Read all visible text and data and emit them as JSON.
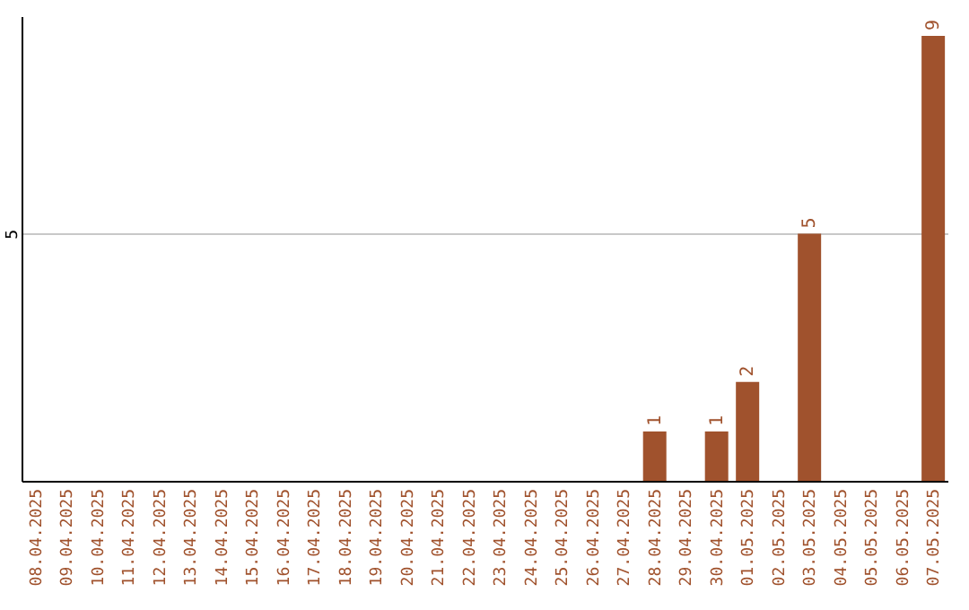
{
  "chart_data": {
    "type": "bar",
    "categories": [
      "08.04.2025",
      "09.04.2025",
      "10.04.2025",
      "11.04.2025",
      "12.04.2025",
      "13.04.2025",
      "14.04.2025",
      "15.04.2025",
      "16.04.2025",
      "17.04.2025",
      "18.04.2025",
      "19.04.2025",
      "20.04.2025",
      "21.04.2025",
      "22.04.2025",
      "23.04.2025",
      "24.04.2025",
      "25.04.2025",
      "26.04.2025",
      "27.04.2025",
      "28.04.2025",
      "29.04.2025",
      "30.04.2025",
      "01.05.2025",
      "02.05.2025",
      "03.05.2025",
      "04.05.2025",
      "05.05.2025",
      "06.05.2025",
      "07.05.2025"
    ],
    "values": [
      null,
      null,
      null,
      null,
      null,
      null,
      null,
      null,
      null,
      null,
      null,
      null,
      null,
      null,
      null,
      null,
      null,
      null,
      null,
      null,
      1,
      null,
      1,
      2,
      null,
      5,
      null,
      null,
      null,
      9
    ],
    "color": "#a0522d",
    "ylim": [
      0,
      9.4
    ],
    "yticks": [
      5
    ],
    "grid": "y",
    "data_labels": true
  }
}
